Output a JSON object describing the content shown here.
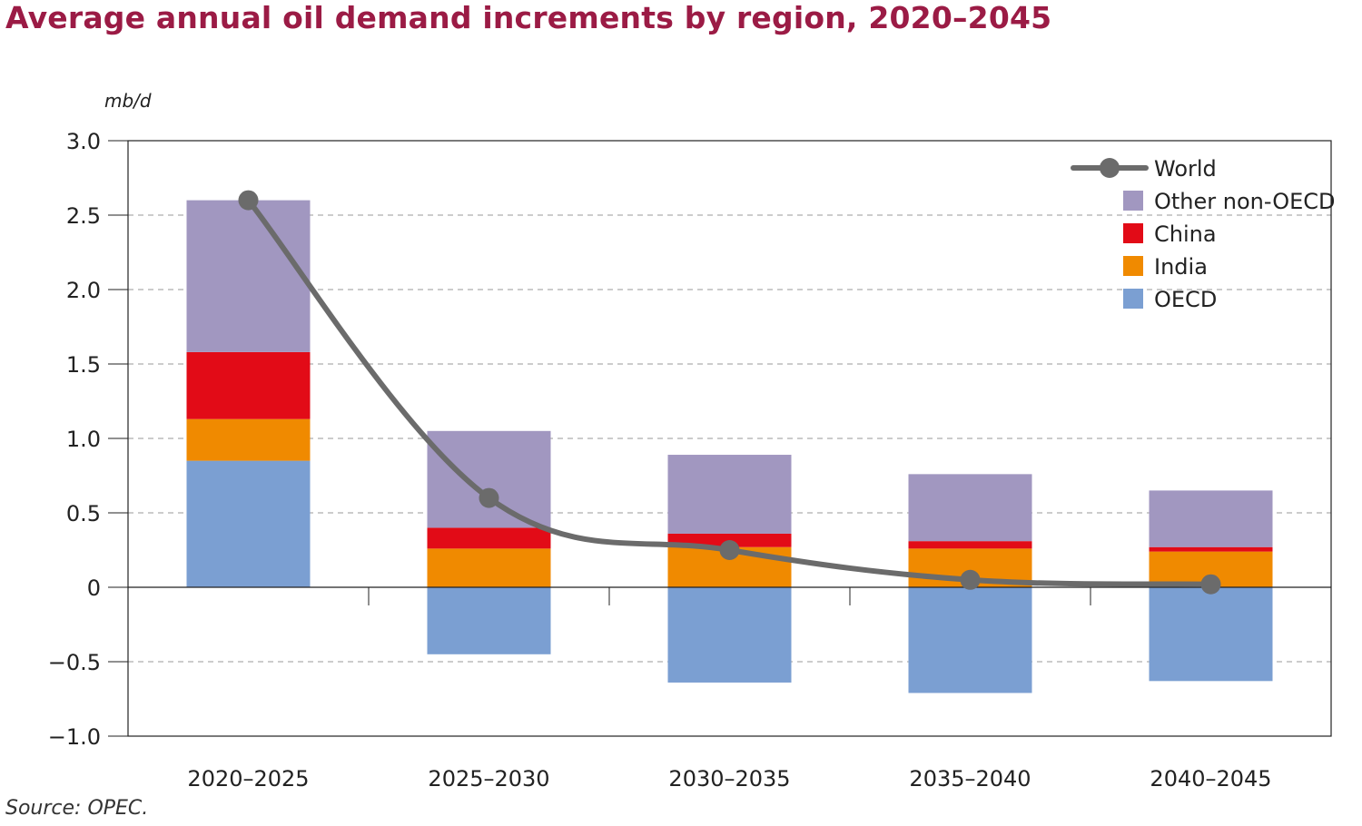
{
  "chart_data": {
    "type": "bar",
    "stacked": true,
    "title": "Average annual oil demand increments by region, 2020–2045",
    "ylabel": "mb/d",
    "xlabel": "",
    "source": "Source: OPEC.",
    "ylim": [
      -1.0,
      3.0
    ],
    "yticks": [
      3.0,
      2.5,
      2.0,
      1.5,
      1.0,
      0.5,
      0,
      -0.5,
      -1.0
    ],
    "ytick_labels": [
      "3.0",
      "2.5",
      "2.0",
      "1.5",
      "1.0",
      "0.5",
      "0",
      "−0.5",
      "−1.0"
    ],
    "categories": [
      "2020–2025",
      "2025–2030",
      "2030–2035",
      "2035–2040",
      "2040–2045"
    ],
    "series": [
      {
        "name": "OECD",
        "color": "#7b9fd2",
        "values": [
          0.85,
          -0.45,
          -0.64,
          -0.71,
          -0.63
        ]
      },
      {
        "name": "India",
        "color": "#f08a00",
        "values": [
          0.28,
          0.26,
          0.27,
          0.26,
          0.24
        ]
      },
      {
        "name": "China",
        "color": "#e20b17",
        "values": [
          0.45,
          0.14,
          0.09,
          0.05,
          0.03
        ]
      },
      {
        "name": "Other non-OECD",
        "color": "#a197c0",
        "values": [
          1.02,
          0.65,
          0.53,
          0.45,
          0.38
        ]
      }
    ],
    "line_series": {
      "name": "World",
      "color": "#6b6b6b",
      "values": [
        2.6,
        0.6,
        0.25,
        0.05,
        0.02
      ]
    },
    "legend_order": [
      "World",
      "Other non-OECD",
      "China",
      "India",
      "OECD"
    ],
    "legend_position": "top-right",
    "grid": "dashed horizontal"
  }
}
